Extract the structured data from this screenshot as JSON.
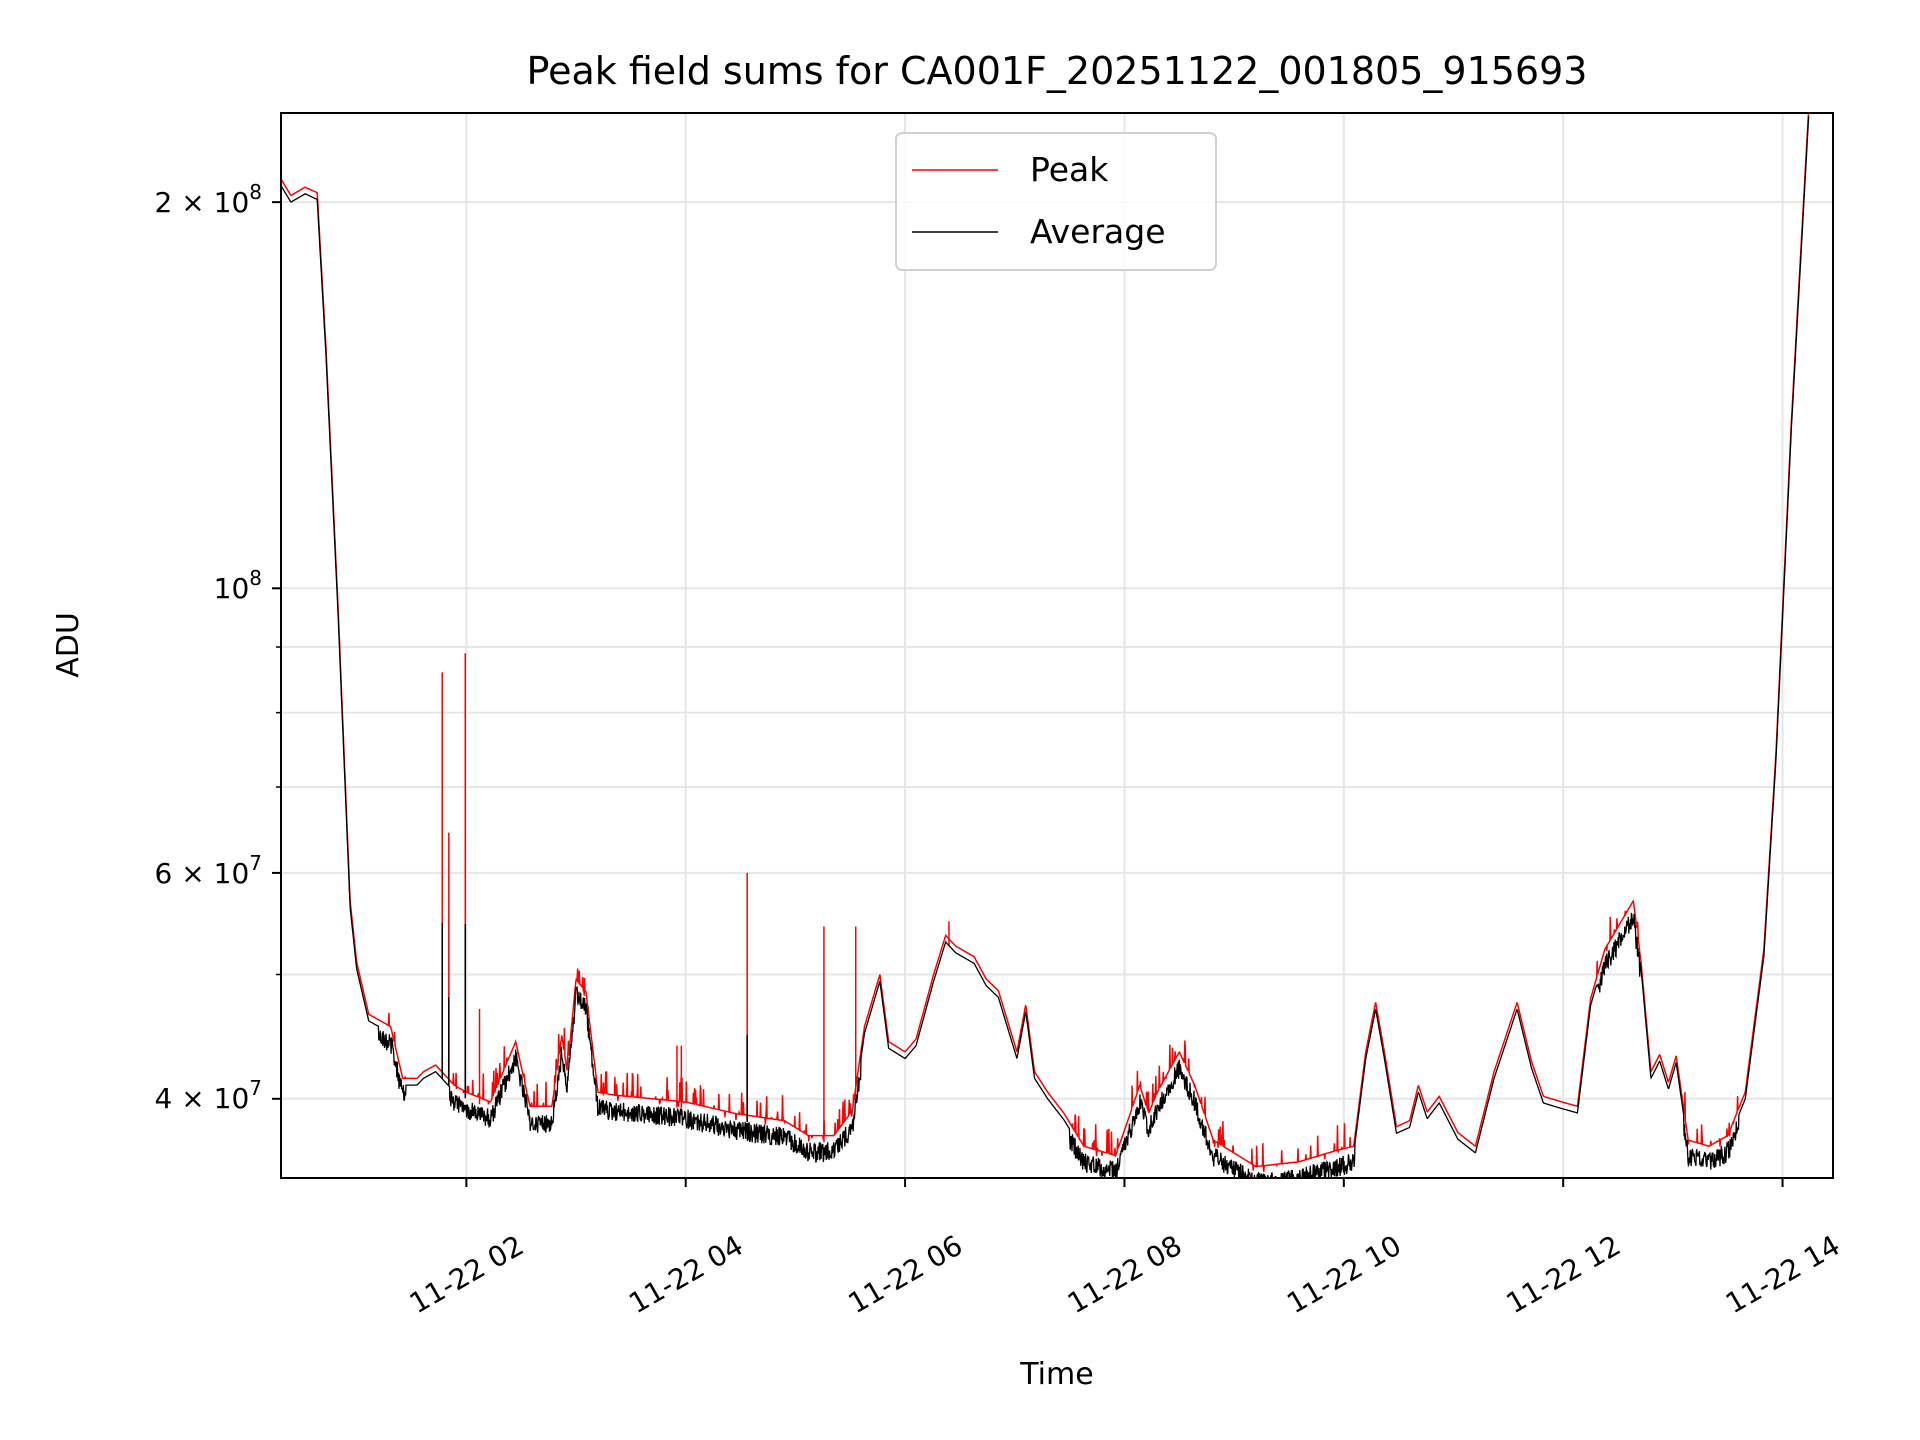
{
  "chart_data": {
    "type": "line",
    "title": "Peak field sums for CA001F_20251122_001805_915693",
    "xlabel": "Time",
    "ylabel": "ADU",
    "yscale": "log",
    "ylim": [
      34700000,
      234700000
    ],
    "xlim_hours": [
      0.31,
      14.46
    ],
    "x_unit": "hours since 11-22 00:00",
    "grid": true,
    "legend_position": "upper-center",
    "x_ticks": [
      {
        "hour": 2,
        "label": "11-22 02"
      },
      {
        "hour": 4,
        "label": "11-22 04"
      },
      {
        "hour": 6,
        "label": "11-22 06"
      },
      {
        "hour": 8,
        "label": "11-22 08"
      },
      {
        "hour": 10,
        "label": "11-22 10"
      },
      {
        "hour": 12,
        "label": "11-22 12"
      },
      {
        "hour": 14,
        "label": "11-22 14"
      }
    ],
    "y_ticks": [
      {
        "value": 40000000,
        "mant": "4 × 10",
        "exp": "7"
      },
      {
        "value": 60000000,
        "mant": "6 × 10",
        "exp": "7"
      },
      {
        "value": 100000000,
        "mant": "10",
        "exp": "8"
      },
      {
        "value": 200000000,
        "mant": "2 × 10",
        "exp": "8"
      }
    ],
    "y_minor_grid": [
      50000000,
      70000000,
      80000000,
      90000000
    ],
    "series": [
      {
        "name": "Peak",
        "color": "#ff0000"
      },
      {
        "name": "Average",
        "color": "#000000"
      }
    ],
    "average_points": [
      [
        0.31,
        206000000.0
      ],
      [
        0.4,
        200000000.0
      ],
      [
        0.53,
        203000000.0
      ],
      [
        0.64,
        201000000.0
      ],
      [
        0.72,
        152000000.0
      ],
      [
        0.83,
        95600000.0
      ],
      [
        0.94,
        56400000.0
      ],
      [
        1.0,
        50500000.0
      ],
      [
        1.11,
        46000000.0
      ],
      [
        1.31,
        45000000.0
      ],
      [
        1.42,
        41000000.0
      ],
      [
        1.55,
        41000000.0
      ],
      [
        1.61,
        41500000.0
      ],
      [
        1.72,
        42000000.0
      ],
      [
        1.89,
        40500000.0
      ],
      [
        2.0,
        40000000.0
      ],
      [
        2.22,
        39300000.0
      ],
      [
        2.45,
        43800000.0
      ],
      [
        2.58,
        39000000.0
      ],
      [
        2.78,
        39000000.0
      ],
      [
        2.87,
        44300000.0
      ],
      [
        2.92,
        41500000.0
      ],
      [
        3.0,
        49000000.0
      ],
      [
        3.09,
        47900000.0
      ],
      [
        3.2,
        40000000.0
      ],
      [
        3.34,
        39800000.0
      ],
      [
        4.0,
        39300000.0
      ],
      [
        4.45,
        38500000.0
      ],
      [
        4.9,
        38000000.0
      ],
      [
        5.12,
        37000000.0
      ],
      [
        5.35,
        37000000.0
      ],
      [
        5.52,
        38700000.0
      ],
      [
        5.63,
        45000000.0
      ],
      [
        5.77,
        49400000.0
      ],
      [
        5.85,
        43800000.0
      ],
      [
        6.0,
        43000000.0
      ],
      [
        6.1,
        44000000.0
      ],
      [
        6.26,
        49400000.0
      ],
      [
        6.37,
        53000000.0
      ],
      [
        6.46,
        52000000.0
      ],
      [
        6.63,
        51000000.0
      ],
      [
        6.74,
        49000000.0
      ],
      [
        6.85,
        48000000.0
      ],
      [
        7.02,
        43000000.0
      ],
      [
        7.1,
        46800000.0
      ],
      [
        7.18,
        41500000.0
      ],
      [
        7.3,
        40000000.0
      ],
      [
        7.45,
        38500000.0
      ],
      [
        7.63,
        36300000.0
      ],
      [
        7.92,
        35700000.0
      ],
      [
        8.03,
        38000000.0
      ],
      [
        8.14,
        40500000.0
      ],
      [
        8.22,
        38500000.0
      ],
      [
        8.3,
        40000000.0
      ],
      [
        8.5,
        43000000.0
      ],
      [
        8.64,
        40500000.0
      ],
      [
        8.81,
        36700000.0
      ],
      [
        9.2,
        35000000.0
      ],
      [
        9.59,
        35300000.0
      ],
      [
        9.92,
        36000000.0
      ],
      [
        10.09,
        36300000.0
      ],
      [
        10.2,
        43000000.0
      ],
      [
        10.29,
        47000000.0
      ],
      [
        10.37,
        43000000.0
      ],
      [
        10.48,
        37600000.0
      ],
      [
        10.6,
        38000000.0
      ],
      [
        10.68,
        40500000.0
      ],
      [
        10.76,
        38600000.0
      ],
      [
        10.87,
        39700000.0
      ],
      [
        11.04,
        37200000.0
      ],
      [
        11.2,
        36300000.0
      ],
      [
        11.37,
        41500000.0
      ],
      [
        11.58,
        47000000.0
      ],
      [
        11.71,
        42300000.0
      ],
      [
        11.82,
        39700000.0
      ],
      [
        11.99,
        39300000.0
      ],
      [
        12.13,
        39000000.0
      ],
      [
        12.25,
        47300000.0
      ],
      [
        12.38,
        51700000.0
      ],
      [
        12.51,
        54000000.0
      ],
      [
        12.64,
        56400000.0
      ],
      [
        12.71,
        50500000.0
      ],
      [
        12.8,
        41500000.0
      ],
      [
        12.88,
        42800000.0
      ],
      [
        12.96,
        40700000.0
      ],
      [
        13.03,
        42700000.0
      ],
      [
        13.14,
        36700000.0
      ],
      [
        13.33,
        36300000.0
      ],
      [
        13.5,
        37000000.0
      ],
      [
        13.66,
        40000000.0
      ],
      [
        13.83,
        51700000.0
      ],
      [
        13.94,
        73500000.0
      ],
      [
        14.08,
        133000000.0
      ],
      [
        14.24,
        235000000.0
      ]
    ],
    "peak_spikes": [
      [
        1.78,
        86000000.0
      ],
      [
        1.84,
        64500000.0
      ],
      [
        1.99,
        89000000.0
      ],
      [
        2.12,
        47000000.0
      ],
      [
        3.92,
        44000000.0
      ],
      [
        3.96,
        44000000.0
      ],
      [
        4.56,
        60000000.0
      ],
      [
        5.26,
        54500000.0
      ],
      [
        5.55,
        54500000.0
      ],
      [
        6.4,
        55000000.0
      ]
    ]
  }
}
